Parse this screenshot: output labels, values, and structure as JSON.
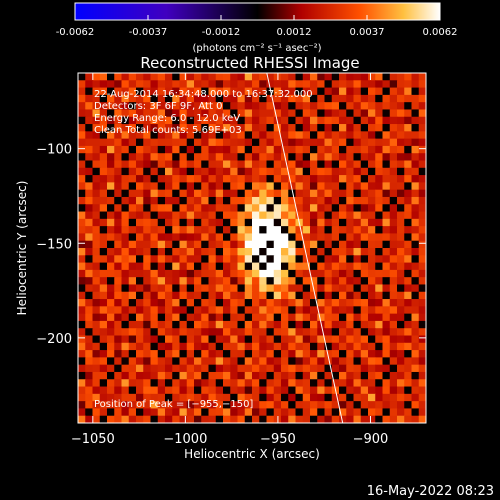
{
  "colorbar": {
    "ticks": [
      "-0.0062",
      "-0.0037",
      "-0.0012",
      "0.0012",
      "0.0037",
      "0.0062"
    ],
    "range": [
      -0.0062,
      0.0062
    ],
    "units_label": "(photons cm⁻² s⁻¹ asec⁻²)"
  },
  "chart_data": {
    "type": "heatmap",
    "title": "Reconstructed RHESSI Image",
    "xlabel": "Heliocentric X (arcsec)",
    "ylabel": "Heliocentric Y (arcsec)",
    "xlim": [
      -1058,
      -870
    ],
    "ylim": [
      -245,
      -60
    ],
    "x_ticks": [
      -1050,
      -1000,
      -950,
      -900
    ],
    "y_ticks": [
      -100,
      -150,
      -200
    ],
    "x_tick_labels": [
      "−1050",
      "−1000",
      "−950",
      "−900"
    ],
    "y_tick_labels": [
      "−100",
      "−150",
      "−200"
    ],
    "info_lines": [
      "22-Aug-2014 16:34:48.000 to 16:37:32.000",
      "Detectors: 3F 6F 9F, Att 0",
      "Energy Range: 6.0 - 12.0 keV",
      "Clean      Total counts: 5.69E+03"
    ],
    "peak_label": "Position of Peak = [−955,−150]",
    "peak": [
      -955,
      -150
    ],
    "limb_line": [
      [
        -956,
        -60
      ],
      [
        -915,
        -245
      ]
    ],
    "colormap": [
      "#0000ff",
      "#4a00c0",
      "#000000",
      "#b00000",
      "#ff4000",
      "#ffa000",
      "#ffff80",
      "#ffffff"
    ]
  },
  "footer": {
    "timestamp": "16-May-2022 08:23"
  }
}
